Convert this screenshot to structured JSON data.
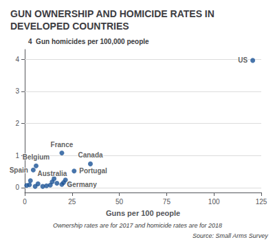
{
  "chart_data": {
    "type": "scatter",
    "title": "GUN OWNERSHIP AND HOMICIDE RATES IN\nDEVELOPED COUNTRIES",
    "xlabel": "Guns per 100 people",
    "ylabel": "4  Gun homicides per 100,000 people",
    "annotations": [
      "Ownership rates are for 2017 and homicide rates are for 2018",
      "Source: Small Arms Survey"
    ],
    "color": "#1a5296",
    "xlim": [
      0,
      125
    ],
    "ylim": [
      -0.15,
      4.3
    ],
    "xticks": [
      0,
      25,
      50,
      75,
      100,
      125
    ],
    "yticks": [
      0,
      1,
      2,
      3,
      4
    ],
    "grid": "y",
    "labels": [
      "US",
      "France",
      "Belgium",
      "Spain",
      "Canada",
      "Portugal",
      "Germany",
      "Australia",
      null,
      null,
      null,
      null,
      null,
      null,
      null,
      null,
      null,
      null,
      null,
      null,
      null
    ],
    "x": [
      120.5,
      19.6,
      6.0,
      4.5,
      34.7,
      26.1,
      19.6,
      14.5,
      1.0,
      2.5,
      3.0,
      5.5,
      7.0,
      9.5,
      11.5,
      13.5,
      15.5,
      17.0,
      20.5,
      21.5,
      23.5
    ],
    "values": [
      3.96,
      1.08,
      0.68,
      0.55,
      0.74,
      0.52,
      0.1,
      0.18,
      0.07,
      0.09,
      0.22,
      0.04,
      0.12,
      0.04,
      0.06,
      0.08,
      0.28,
      0.14,
      0.16,
      0.24,
      0.12
    ]
  }
}
